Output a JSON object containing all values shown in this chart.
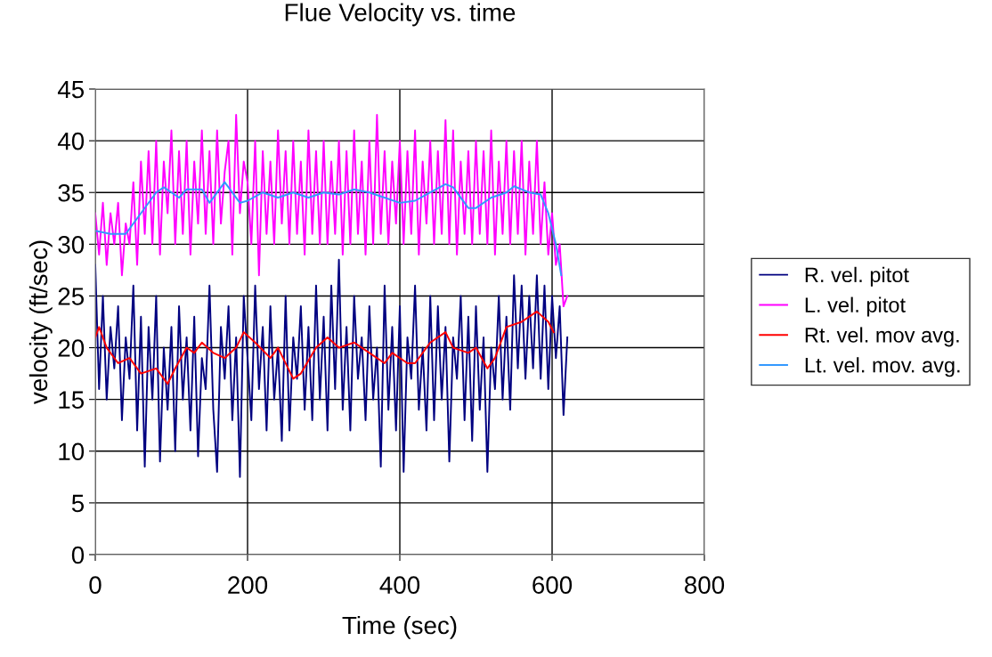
{
  "chart_data": {
    "type": "line",
    "title": "Flue Velocity vs. time",
    "xlabel": "Time (sec)",
    "ylabel": "velocity (ft/sec)",
    "xlim": [
      0,
      800
    ],
    "xticks": [
      0,
      200,
      400,
      600,
      800
    ],
    "ylim": [
      0,
      45
    ],
    "yticks": [
      0,
      5,
      10,
      15,
      20,
      25,
      30,
      35,
      40,
      45
    ],
    "grid": true,
    "legend": "right",
    "marker": "none",
    "line_style": "solid",
    "series": [
      {
        "name": "R. vel. pitot",
        "color": "#000080",
        "x": [
          0,
          5,
          10,
          15,
          20,
          25,
          30,
          35,
          40,
          45,
          50,
          55,
          60,
          65,
          70,
          75,
          80,
          85,
          90,
          95,
          100,
          105,
          110,
          115,
          120,
          125,
          130,
          135,
          140,
          145,
          150,
          155,
          160,
          165,
          170,
          175,
          180,
          185,
          190,
          195,
          200,
          205,
          210,
          215,
          220,
          225,
          230,
          235,
          240,
          245,
          250,
          255,
          260,
          265,
          270,
          275,
          280,
          285,
          290,
          295,
          300,
          305,
          310,
          315,
          320,
          325,
          330,
          335,
          340,
          345,
          350,
          355,
          360,
          365,
          370,
          375,
          380,
          385,
          390,
          395,
          400,
          405,
          410,
          415,
          420,
          425,
          430,
          435,
          440,
          445,
          450,
          455,
          460,
          465,
          470,
          475,
          480,
          485,
          490,
          495,
          500,
          505,
          510,
          515,
          520,
          525,
          530,
          535,
          540,
          545,
          550,
          555,
          560,
          565,
          570,
          575,
          580,
          585,
          590,
          595,
          600,
          605,
          610,
          615,
          620
        ],
        "values": [
          28,
          16,
          25,
          15,
          22,
          18,
          24,
          13,
          21,
          17,
          26,
          12,
          23,
          8.5,
          22,
          15,
          25,
          9,
          20,
          14,
          22,
          10,
          24,
          15,
          21,
          12,
          23,
          9.5,
          19,
          16,
          26,
          14,
          8,
          22,
          17,
          24,
          13,
          21,
          7.5,
          25,
          19,
          13,
          26,
          16,
          22,
          12,
          24,
          15,
          20,
          11,
          25,
          12,
          21,
          17,
          24,
          14,
          22,
          13,
          26,
          15,
          23,
          12,
          26,
          16,
          28.5,
          14,
          22,
          12,
          25,
          17,
          21,
          13,
          24,
          15,
          20,
          8.5,
          26,
          14,
          22,
          12,
          24,
          8,
          21,
          17,
          26,
          14,
          20,
          12,
          25,
          13,
          24,
          15,
          22,
          9,
          21,
          17,
          25,
          13,
          23,
          11,
          24,
          14,
          21,
          8,
          20,
          16,
          25,
          15,
          23,
          14,
          27,
          18,
          26,
          17,
          25,
          18,
          27,
          17,
          26,
          16,
          25,
          19,
          24,
          13.5,
          21
        ]
      },
      {
        "name": "L. vel. pitot",
        "color": "#ff00ff",
        "x": [
          0,
          5,
          10,
          15,
          20,
          25,
          30,
          35,
          40,
          45,
          50,
          55,
          60,
          65,
          70,
          75,
          80,
          85,
          90,
          95,
          100,
          105,
          110,
          115,
          120,
          125,
          130,
          135,
          140,
          145,
          150,
          155,
          160,
          165,
          170,
          175,
          180,
          185,
          190,
          195,
          200,
          205,
          210,
          215,
          220,
          225,
          230,
          235,
          240,
          245,
          250,
          255,
          260,
          265,
          270,
          275,
          280,
          285,
          290,
          295,
          300,
          305,
          310,
          315,
          320,
          325,
          330,
          335,
          340,
          345,
          350,
          355,
          360,
          365,
          370,
          375,
          380,
          385,
          390,
          395,
          400,
          405,
          410,
          415,
          420,
          425,
          430,
          435,
          440,
          445,
          450,
          455,
          460,
          465,
          470,
          475,
          480,
          485,
          490,
          495,
          500,
          505,
          510,
          515,
          520,
          525,
          530,
          535,
          540,
          545,
          550,
          555,
          560,
          565,
          570,
          575,
          580,
          585,
          590,
          595,
          600,
          605,
          610,
          615,
          620
        ],
        "values": [
          33,
          29,
          34,
          28,
          33,
          30,
          34,
          27,
          32,
          30,
          36,
          28,
          38,
          31,
          39,
          30,
          40,
          29,
          38,
          33,
          41,
          30,
          39,
          31,
          40,
          29,
          38,
          32,
          41,
          31,
          39,
          30,
          41,
          32,
          37,
          40,
          29,
          42.5,
          33,
          38,
          36,
          30,
          40,
          27,
          39,
          31,
          38,
          30,
          41,
          32,
          39,
          30,
          40,
          31,
          38,
          29,
          41,
          31,
          39,
          30,
          40,
          30,
          38,
          31,
          40,
          29,
          39,
          30,
          41,
          31,
          38,
          29,
          40,
          30,
          42.5,
          31,
          39,
          30,
          38,
          32,
          40,
          30,
          39,
          31,
          41,
          29,
          38,
          32,
          40,
          30,
          39,
          31,
          42,
          30,
          41,
          29,
          38,
          31,
          39,
          30,
          40,
          31,
          39,
          30,
          41,
          29,
          38,
          31,
          40,
          30,
          39,
          31,
          40,
          29,
          38,
          31,
          40,
          30,
          36,
          29,
          33,
          28,
          30,
          24,
          25
        ]
      },
      {
        "name": "Rt. vel. mov avg.",
        "color": "#ff0000",
        "x": [
          0,
          5,
          15,
          30,
          45,
          60,
          80,
          95,
          105,
          120,
          130,
          140,
          155,
          170,
          185,
          195,
          210,
          230,
          240,
          260,
          270,
          290,
          305,
          320,
          340,
          360,
          380,
          390,
          410,
          420,
          440,
          460,
          470,
          490,
          500,
          515,
          525,
          540,
          560,
          580,
          595,
          602
        ],
        "values": [
          21,
          22,
          20,
          18.5,
          19,
          17.5,
          18,
          16.5,
          18,
          20,
          19.5,
          20.5,
          19.5,
          19,
          20,
          21.5,
          20.5,
          19,
          20,
          17,
          17.5,
          20,
          21,
          20,
          20.5,
          19.5,
          18.5,
          19.5,
          18.5,
          18.5,
          20.5,
          21.5,
          20,
          19.5,
          20,
          18,
          19,
          22,
          22.5,
          23.5,
          22.5,
          21.5
        ]
      },
      {
        "name": "Lt. vel. mov. avg.",
        "color": "#3399ff",
        "x": [
          0,
          20,
          40,
          60,
          80,
          90,
          110,
          120,
          140,
          150,
          170,
          190,
          200,
          220,
          240,
          260,
          280,
          300,
          320,
          340,
          360,
          380,
          400,
          420,
          440,
          460,
          470,
          490,
          500,
          520,
          540,
          550,
          570,
          585,
          595,
          605,
          612
        ],
        "values": [
          31.3,
          31,
          31,
          33,
          35,
          35.5,
          34.5,
          35.3,
          35.3,
          34,
          36,
          34,
          34.2,
          35,
          34.5,
          35,
          34.5,
          35,
          34.8,
          35.3,
          35,
          34.5,
          34,
          34.2,
          35,
          35.8,
          35.5,
          33.5,
          33.5,
          34.5,
          35,
          35.6,
          35,
          34.8,
          33,
          30,
          27
        ]
      }
    ]
  }
}
